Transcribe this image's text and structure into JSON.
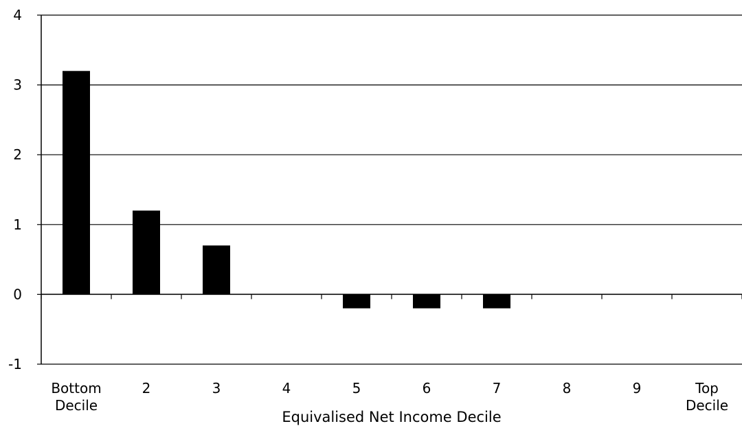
{
  "chart_data": {
    "type": "bar",
    "categories": [
      "Bottom Decile",
      "2",
      "3",
      "4",
      "5",
      "6",
      "7",
      "8",
      "9",
      "Top Decile"
    ],
    "category_lines": [
      [
        "Bottom",
        "Decile"
      ],
      [
        "2"
      ],
      [
        "3"
      ],
      [
        "4"
      ],
      [
        "5"
      ],
      [
        "6"
      ],
      [
        "7"
      ],
      [
        "8"
      ],
      [
        "9"
      ],
      [
        "Top",
        "Decile"
      ]
    ],
    "values": [
      3.2,
      1.2,
      0.7,
      0,
      -0.2,
      -0.2,
      -0.2,
      0,
      0,
      0
    ],
    "title": "",
    "xlabel": "Equivalised Net Income Decile",
    "ylabel": "",
    "ylim": [
      -1,
      4
    ],
    "yticks": [
      4,
      3,
      2,
      1,
      0,
      -1
    ],
    "grid": "horizontal",
    "legend": "none",
    "bar_color": "#000000"
  }
}
